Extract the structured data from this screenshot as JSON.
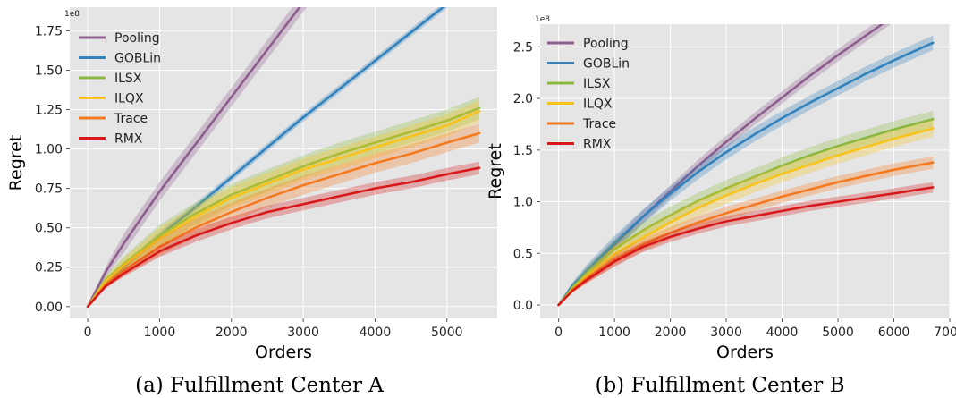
{
  "figure": {
    "captions": [
      "(a) Fulfillment Center A",
      "(b) Fulfillment Center B"
    ],
    "colors": {
      "Pooling": "#8e5d8f",
      "GOBLin": "#3182bd",
      "ILSX": "#8ab83f",
      "ILQX": "#f7c31c",
      "Trace": "#f4791f",
      "RMX": "#d7191c"
    }
  },
  "chart_data": [
    {
      "type": "line",
      "xlabel": "Orders",
      "ylabel": "Regret",
      "y_multiplier": "1e8",
      "xlim": [
        -250,
        5700
      ],
      "ylim": [
        -0.075,
        1.9
      ],
      "xticks": [
        0,
        1000,
        2000,
        3000,
        4000,
        5000
      ],
      "xtick_labels": [
        "0",
        "1000",
        "2000",
        "3000",
        "4000",
        "5000"
      ],
      "yticks": [
        0,
        0.25,
        0.5,
        0.75,
        1.0,
        1.25,
        1.5,
        1.75
      ],
      "ytick_labels": [
        "0.00",
        "0.25",
        "0.50",
        "0.75",
        "1.00",
        "1.25",
        "1.50",
        "1.75"
      ],
      "grid": true,
      "legend_position": "top-left",
      "x": [
        0,
        250,
        500,
        1000,
        1500,
        2000,
        2500,
        3000,
        3500,
        4000,
        4500,
        5000,
        5450
      ],
      "series": [
        {
          "name": "Pooling",
          "values": [
            0,
            0.22,
            0.4,
            0.73,
            1.03,
            1.33,
            1.63,
            1.93,
            null,
            null,
            null,
            null,
            null
          ],
          "band": 0.06
        },
        {
          "name": "GOBLin",
          "values": [
            0,
            0.14,
            0.25,
            0.45,
            0.63,
            0.82,
            1.01,
            1.2,
            1.38,
            1.56,
            1.74,
            1.92,
            null
          ],
          "band": 0.025
        },
        {
          "name": "ILSX",
          "values": [
            0,
            0.17,
            0.27,
            0.45,
            0.59,
            0.71,
            0.8,
            0.89,
            0.97,
            1.04,
            1.11,
            1.18,
            1.26
          ],
          "band": 0.07
        },
        {
          "name": "ILQX",
          "values": [
            0,
            0.16,
            0.26,
            0.43,
            0.57,
            0.69,
            0.78,
            0.87,
            0.94,
            1.01,
            1.08,
            1.15,
            1.24
          ],
          "band": 0.07
        },
        {
          "name": "Trace",
          "values": [
            0,
            0.14,
            0.23,
            0.38,
            0.5,
            0.6,
            0.69,
            0.77,
            0.84,
            0.91,
            0.97,
            1.04,
            1.1
          ],
          "band": 0.06
        },
        {
          "name": "RMX",
          "values": [
            0,
            0.13,
            0.21,
            0.35,
            0.45,
            0.53,
            0.6,
            0.65,
            0.7,
            0.75,
            0.79,
            0.84,
            0.88
          ],
          "band": 0.04
        }
      ]
    },
    {
      "type": "line",
      "xlabel": "Orders",
      "ylabel": "Regret",
      "y_multiplier": "1e8",
      "xlim": [
        -330,
        7000
      ],
      "ylim": [
        -0.13,
        2.72
      ],
      "xticks": [
        0,
        1000,
        2000,
        3000,
        4000,
        5000,
        6000,
        7000
      ],
      "xtick_labels": [
        "0",
        "1000",
        "2000",
        "3000",
        "4000",
        "5000",
        "6000",
        "7000"
      ],
      "yticks": [
        0,
        0.5,
        1.0,
        1.5,
        2.0,
        2.5
      ],
      "ytick_labels": [
        "0.0",
        "0.5",
        "1.0",
        "1.5",
        "2.0",
        "2.5"
      ],
      "grid": true,
      "legend_position": "top-left",
      "x": [
        0,
        250,
        500,
        1000,
        1500,
        2000,
        2500,
        3000,
        3500,
        4000,
        4500,
        5000,
        5500,
        6000,
        6700
      ],
      "series": [
        {
          "name": "Pooling",
          "values": [
            0,
            0.18,
            0.32,
            0.58,
            0.85,
            1.1,
            1.35,
            1.58,
            1.8,
            2.01,
            2.22,
            2.42,
            2.61,
            2.8,
            null
          ],
          "band": 0.06
        },
        {
          "name": "GOBLin",
          "values": [
            0,
            0.19,
            0.33,
            0.6,
            0.85,
            1.08,
            1.29,
            1.48,
            1.65,
            1.81,
            1.96,
            2.1,
            2.24,
            2.37,
            2.54
          ],
          "band": 0.07
        },
        {
          "name": "ILSX",
          "values": [
            0,
            0.17,
            0.3,
            0.54,
            0.72,
            0.87,
            1.01,
            1.13,
            1.24,
            1.35,
            1.45,
            1.54,
            1.62,
            1.7,
            1.8
          ],
          "band": 0.08
        },
        {
          "name": "ILQX",
          "values": [
            0,
            0.15,
            0.28,
            0.49,
            0.65,
            0.8,
            0.94,
            1.06,
            1.17,
            1.27,
            1.36,
            1.45,
            1.53,
            1.61,
            1.71
          ],
          "band": 0.08
        },
        {
          "name": "Trace",
          "values": [
            0,
            0.14,
            0.25,
            0.44,
            0.58,
            0.7,
            0.8,
            0.89,
            0.97,
            1.05,
            1.12,
            1.19,
            1.25,
            1.31,
            1.38
          ],
          "band": 0.06
        },
        {
          "name": "RMX",
          "values": [
            0,
            0.14,
            0.24,
            0.42,
            0.56,
            0.66,
            0.74,
            0.81,
            0.86,
            0.91,
            0.96,
            1.0,
            1.04,
            1.08,
            1.14
          ],
          "band": 0.05
        }
      ]
    }
  ]
}
